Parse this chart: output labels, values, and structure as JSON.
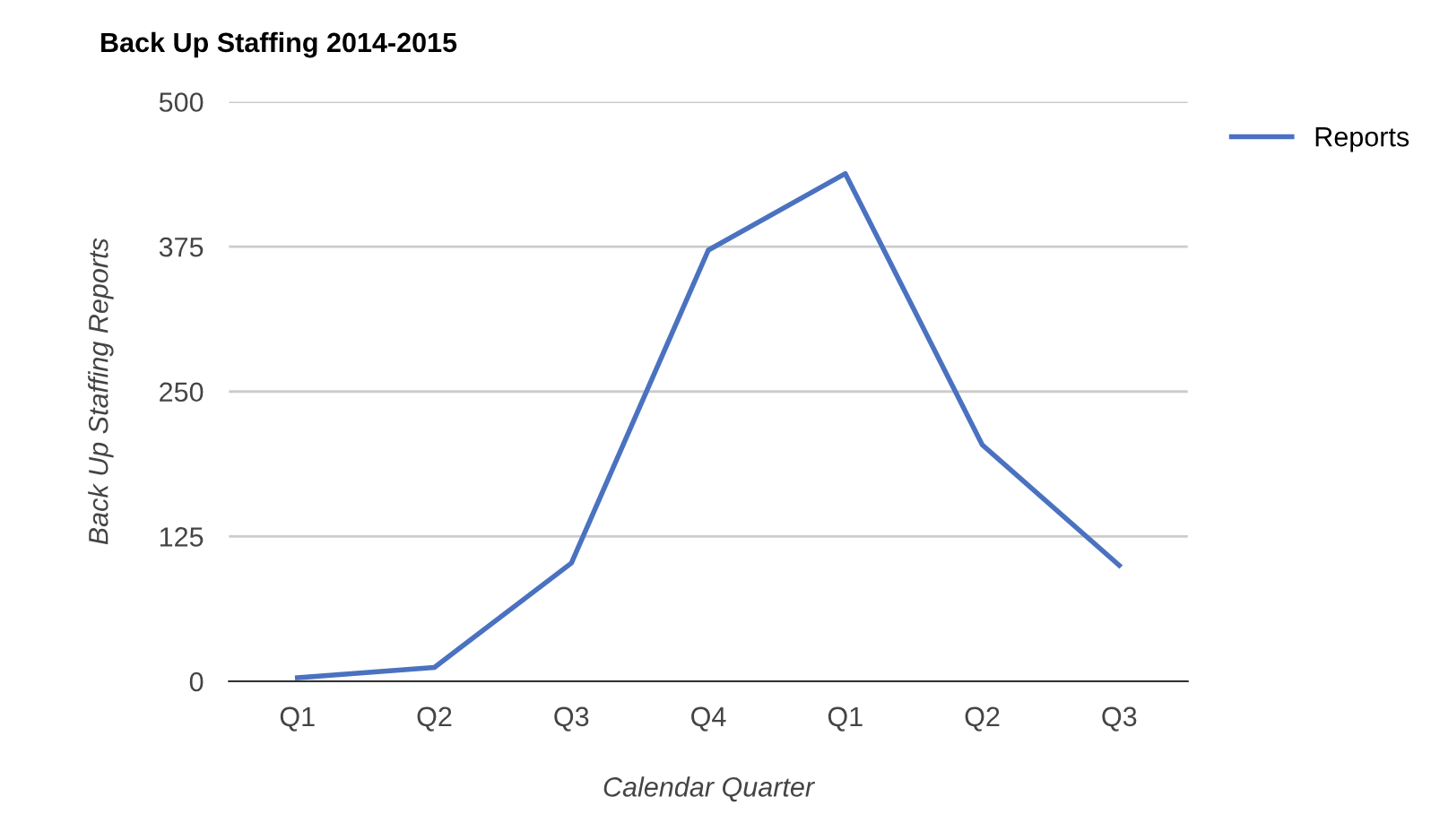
{
  "chart_data": {
    "type": "line",
    "title": "Back Up Staffing 2014-2015",
    "xlabel": "Calendar Quarter",
    "ylabel": "Back Up Staffing Reports",
    "categories": [
      "Q1",
      "Q2",
      "Q3",
      "Q4",
      "Q1",
      "Q2",
      "Q3"
    ],
    "series": [
      {
        "name": "Reports",
        "color": "#4a72c0",
        "values": [
          3,
          12,
          102,
          372,
          438,
          204,
          100
        ]
      }
    ],
    "ylim": [
      0,
      500
    ],
    "yticks": [
      0,
      125,
      250,
      375,
      500
    ],
    "grid": "y",
    "legend": "right",
    "marker": "none",
    "line_style": "solid"
  }
}
